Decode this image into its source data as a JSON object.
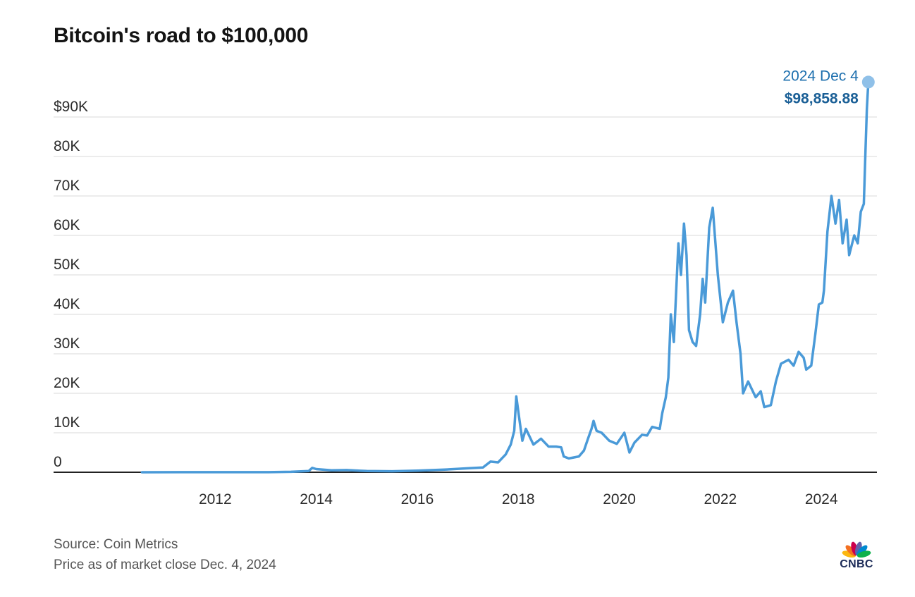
{
  "header": {
    "title": "Bitcoin's road to $100,000"
  },
  "footer": {
    "source": "Source: Coin Metrics",
    "note": "Price as of market close Dec. 4, 2024"
  },
  "logo": {
    "text": "CNBC",
    "icon": "cnbc-peacock-icon",
    "colors": [
      "#fcb711",
      "#f37021",
      "#cc004c",
      "#6460aa",
      "#0089d0",
      "#0db14b"
    ]
  },
  "colors": {
    "line": "#4a9ad8",
    "endpoint": "#8fc0e8",
    "annotation_date": "#1d6fae",
    "annotation_value": "#1a5f96",
    "grid": "#d9d9d9",
    "axis": "#222222"
  },
  "chart_data": {
    "type": "line",
    "title": "Bitcoin's road to $100,000",
    "xlabel": "",
    "ylabel": "",
    "xlim": [
      2008.8,
      2025.1
    ],
    "ylim": [
      0,
      100000
    ],
    "grid": true,
    "y_ticks": [
      {
        "value": 0,
        "label": "0"
      },
      {
        "value": 10000,
        "label": "10K"
      },
      {
        "value": 20000,
        "label": "20K"
      },
      {
        "value": 30000,
        "label": "30K"
      },
      {
        "value": 40000,
        "label": "40K"
      },
      {
        "value": 50000,
        "label": "50K"
      },
      {
        "value": 60000,
        "label": "60K"
      },
      {
        "value": 70000,
        "label": "70K"
      },
      {
        "value": 80000,
        "label": "80K"
      },
      {
        "value": 90000,
        "label": "$90K"
      }
    ],
    "x_ticks": [
      {
        "value": 2012,
        "label": "2012"
      },
      {
        "value": 2014,
        "label": "2014"
      },
      {
        "value": 2016,
        "label": "2016"
      },
      {
        "value": 2018,
        "label": "2018"
      },
      {
        "value": 2020,
        "label": "2020"
      },
      {
        "value": 2022,
        "label": "2022"
      },
      {
        "value": 2024,
        "label": "2024"
      }
    ],
    "series": [
      {
        "points": [
          [
            2010.55,
            0
          ],
          [
            2011.5,
            15
          ],
          [
            2012.5,
            10
          ],
          [
            2013.0,
            20
          ],
          [
            2013.5,
            100
          ],
          [
            2013.85,
            300
          ],
          [
            2013.92,
            1100
          ],
          [
            2014.0,
            800
          ],
          [
            2014.3,
            500
          ],
          [
            2014.6,
            550
          ],
          [
            2015.0,
            300
          ],
          [
            2015.5,
            250
          ],
          [
            2016.0,
            400
          ],
          [
            2016.5,
            650
          ],
          [
            2017.0,
            1000
          ],
          [
            2017.3,
            1200
          ],
          [
            2017.45,
            2700
          ],
          [
            2017.6,
            2500
          ],
          [
            2017.75,
            4500
          ],
          [
            2017.85,
            7000
          ],
          [
            2017.92,
            10500
          ],
          [
            2017.96,
            19200
          ],
          [
            2018.02,
            13500
          ],
          [
            2018.08,
            8000
          ],
          [
            2018.15,
            11000
          ],
          [
            2018.3,
            7000
          ],
          [
            2018.45,
            8500
          ],
          [
            2018.6,
            6500
          ],
          [
            2018.75,
            6500
          ],
          [
            2018.85,
            6300
          ],
          [
            2018.9,
            4000
          ],
          [
            2019.0,
            3500
          ],
          [
            2019.2,
            4000
          ],
          [
            2019.3,
            5500
          ],
          [
            2019.38,
            8500
          ],
          [
            2019.45,
            11000
          ],
          [
            2019.49,
            13000
          ],
          [
            2019.55,
            10500
          ],
          [
            2019.65,
            10000
          ],
          [
            2019.8,
            8000
          ],
          [
            2019.95,
            7200
          ],
          [
            2020.1,
            10000
          ],
          [
            2020.2,
            5000
          ],
          [
            2020.3,
            7500
          ],
          [
            2020.45,
            9500
          ],
          [
            2020.55,
            9300
          ],
          [
            2020.65,
            11500
          ],
          [
            2020.8,
            11000
          ],
          [
            2020.85,
            15000
          ],
          [
            2020.92,
            19000
          ],
          [
            2020.97,
            24000
          ],
          [
            2021.02,
            40000
          ],
          [
            2021.08,
            33000
          ],
          [
            2021.13,
            47000
          ],
          [
            2021.17,
            58000
          ],
          [
            2021.22,
            50000
          ],
          [
            2021.28,
            63000
          ],
          [
            2021.33,
            55000
          ],
          [
            2021.38,
            36000
          ],
          [
            2021.45,
            33000
          ],
          [
            2021.52,
            32000
          ],
          [
            2021.6,
            40000
          ],
          [
            2021.65,
            49000
          ],
          [
            2021.7,
            43000
          ],
          [
            2021.78,
            62000
          ],
          [
            2021.85,
            67000
          ],
          [
            2021.95,
            50000
          ],
          [
            2022.05,
            38000
          ],
          [
            2022.15,
            43000
          ],
          [
            2022.25,
            46000
          ],
          [
            2022.32,
            38000
          ],
          [
            2022.4,
            30000
          ],
          [
            2022.45,
            20000
          ],
          [
            2022.55,
            23000
          ],
          [
            2022.7,
            19000
          ],
          [
            2022.8,
            20500
          ],
          [
            2022.87,
            16500
          ],
          [
            2023.0,
            17000
          ],
          [
            2023.1,
            23000
          ],
          [
            2023.2,
            27500
          ],
          [
            2023.35,
            28500
          ],
          [
            2023.45,
            27000
          ],
          [
            2023.55,
            30500
          ],
          [
            2023.65,
            29000
          ],
          [
            2023.7,
            26000
          ],
          [
            2023.8,
            27000
          ],
          [
            2023.88,
            35000
          ],
          [
            2023.95,
            42500
          ],
          [
            2024.02,
            43000
          ],
          [
            2024.05,
            46000
          ],
          [
            2024.12,
            61000
          ],
          [
            2024.2,
            70000
          ],
          [
            2024.28,
            63000
          ],
          [
            2024.35,
            69000
          ],
          [
            2024.42,
            58000
          ],
          [
            2024.5,
            64000
          ],
          [
            2024.55,
            55000
          ],
          [
            2024.65,
            60000
          ],
          [
            2024.72,
            58000
          ],
          [
            2024.78,
            66000
          ],
          [
            2024.84,
            68000
          ],
          [
            2024.87,
            80000
          ],
          [
            2024.9,
            92000
          ],
          [
            2024.93,
            98858.88
          ]
        ]
      }
    ],
    "annotation": {
      "date": "2024 Dec 4",
      "value_label": "$98,858.88",
      "x": 2024.93,
      "y": 98858.88
    }
  }
}
